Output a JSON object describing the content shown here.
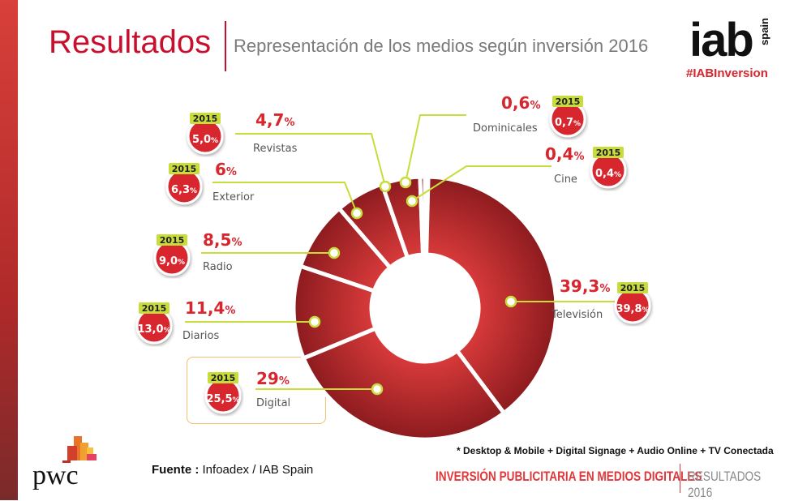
{
  "header": {
    "title": "Resultados",
    "subtitle": "Representación de los medios según inversión 2016",
    "logo": "iab",
    "logo_sub": "spain",
    "hashtag": "#IABInversion"
  },
  "chart_data": {
    "type": "pie",
    "donut": true,
    "title": "Representación de los medios según inversión 2016",
    "compare_label": "2015",
    "unit": "%",
    "slices": [
      {
        "name": "Cine",
        "value": "0,4",
        "v": 0.4,
        "prev": "0,4"
      },
      {
        "name": "Televisión",
        "value": "39,3",
        "v": 39.3,
        "prev": "39,8"
      },
      {
        "name": "Digital",
        "value": "29",
        "v": 29,
        "prev": "25,5",
        "highlight": true
      },
      {
        "name": "Diarios",
        "value": "11,4",
        "v": 11.4,
        "prev": "13,0"
      },
      {
        "name": "Radio",
        "value": "8,5",
        "v": 8.5,
        "prev": "9,0"
      },
      {
        "name": "Exterior",
        "value": "6",
        "v": 6,
        "prev": "6,3"
      },
      {
        "name": "Revistas",
        "value": "4,7",
        "v": 4.7,
        "prev": "5,0"
      },
      {
        "name": "Dominicales",
        "value": "0,6",
        "v": 0.6,
        "prev": "0,7"
      }
    ],
    "colors": {
      "slice": "#c42a2e",
      "slice_dark": "#8a1a1e",
      "leader": "#c8dc3c",
      "badge_tab": "#c8dc3c",
      "value": "#d8262e"
    }
  },
  "footer": {
    "note": "* Desktop & Mobile + Digital Signage + Audio Online + TV Conectada",
    "source_label": "Fuente :",
    "source": " Infoadex / IAB Spain",
    "brand": "pwc",
    "banner_left": "INVERSIÓN PUBLICITARIA EN MEDIOS DIGITALES",
    "banner_right": "RESULTADOS 2016"
  }
}
